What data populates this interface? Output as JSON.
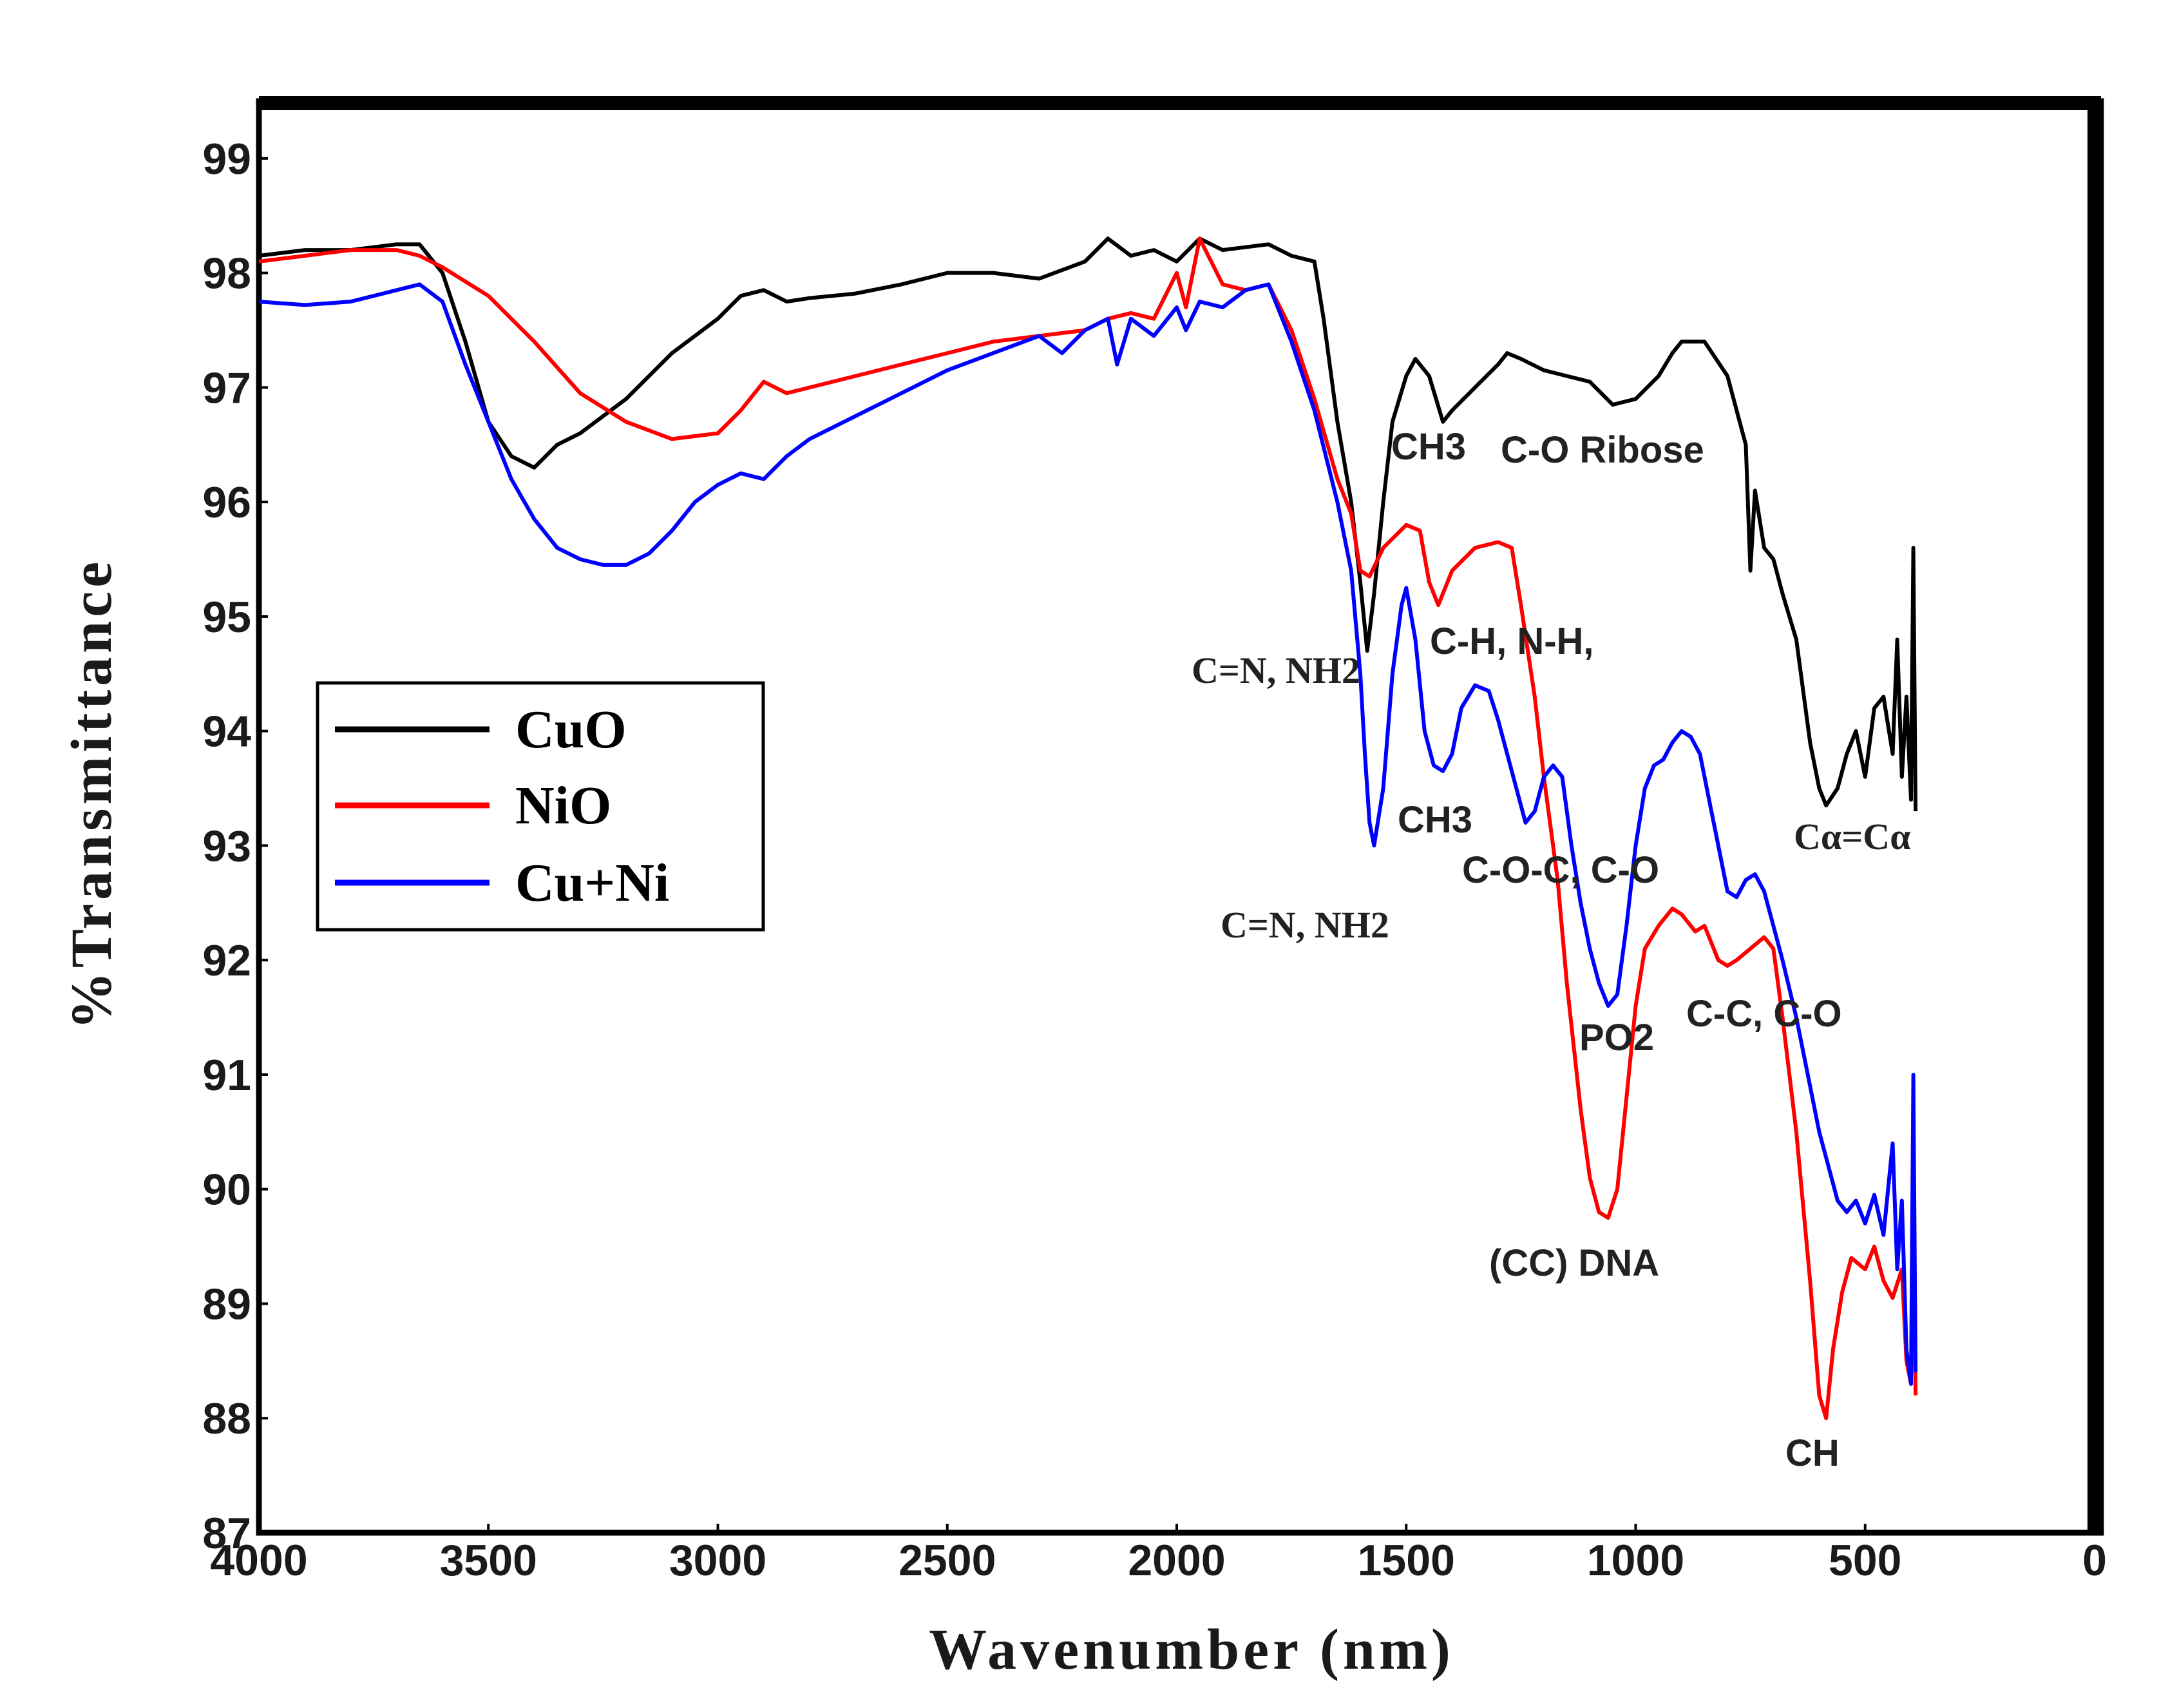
{
  "chart_data": {
    "type": "line",
    "title": "",
    "xlabel": "Wavenumber (nm)",
    "ylabel": "%Transmittance",
    "xlim": [
      4000,
      0
    ],
    "ylim": [
      87,
      99.5
    ],
    "x_ticks": [
      4000,
      3500,
      3000,
      2500,
      2000,
      1500,
      1000,
      500,
      0
    ],
    "y_ticks": [
      87,
      88,
      89,
      90,
      91,
      92,
      93,
      94,
      95,
      96,
      97,
      98,
      99
    ],
    "legend_position": "middle-left",
    "series": [
      {
        "name": "CuO",
        "color": "#000000",
        "points": [
          [
            4000,
            98.15
          ],
          [
            3900,
            98.2
          ],
          [
            3800,
            98.2
          ],
          [
            3700,
            98.25
          ],
          [
            3650,
            98.25
          ],
          [
            3600,
            98.0
          ],
          [
            3550,
            97.4
          ],
          [
            3500,
            96.7
          ],
          [
            3450,
            96.4
          ],
          [
            3400,
            96.3
          ],
          [
            3350,
            96.5
          ],
          [
            3300,
            96.6
          ],
          [
            3200,
            96.9
          ],
          [
            3100,
            97.3
          ],
          [
            3000,
            97.6
          ],
          [
            2950,
            97.8
          ],
          [
            2900,
            97.85
          ],
          [
            2850,
            97.75
          ],
          [
            2800,
            97.78
          ],
          [
            2700,
            97.82
          ],
          [
            2600,
            97.9
          ],
          [
            2500,
            98.0
          ],
          [
            2400,
            98.0
          ],
          [
            2300,
            97.95
          ],
          [
            2200,
            98.1
          ],
          [
            2150,
            98.3
          ],
          [
            2100,
            98.15
          ],
          [
            2050,
            98.2
          ],
          [
            2000,
            98.1
          ],
          [
            1950,
            98.3
          ],
          [
            1900,
            98.2
          ],
          [
            1800,
            98.25
          ],
          [
            1750,
            98.15
          ],
          [
            1700,
            98.1
          ],
          [
            1680,
            97.6
          ],
          [
            1650,
            96.7
          ],
          [
            1620,
            96.0
          ],
          [
            1600,
            95.3
          ],
          [
            1585,
            94.7
          ],
          [
            1570,
            95.2
          ],
          [
            1550,
            96.0
          ],
          [
            1530,
            96.7
          ],
          [
            1500,
            97.1
          ],
          [
            1480,
            97.25
          ],
          [
            1450,
            97.1
          ],
          [
            1420,
            96.7
          ],
          [
            1400,
            96.8
          ],
          [
            1350,
            97.0
          ],
          [
            1300,
            97.2
          ],
          [
            1280,
            97.3
          ],
          [
            1250,
            97.25
          ],
          [
            1200,
            97.15
          ],
          [
            1150,
            97.1
          ],
          [
            1100,
            97.05
          ],
          [
            1050,
            96.85
          ],
          [
            1000,
            96.9
          ],
          [
            950,
            97.1
          ],
          [
            920,
            97.3
          ],
          [
            900,
            97.4
          ],
          [
            850,
            97.4
          ],
          [
            800,
            97.1
          ],
          [
            760,
            96.5
          ],
          [
            750,
            95.4
          ],
          [
            740,
            96.1
          ],
          [
            720,
            95.6
          ],
          [
            700,
            95.5
          ],
          [
            680,
            95.2
          ],
          [
            650,
            94.8
          ],
          [
            620,
            93.9
          ],
          [
            600,
            93.5
          ],
          [
            585,
            93.35
          ],
          [
            560,
            93.5
          ],
          [
            540,
            93.8
          ],
          [
            520,
            94.0
          ],
          [
            500,
            93.6
          ],
          [
            480,
            94.2
          ],
          [
            460,
            94.3
          ],
          [
            440,
            93.8
          ],
          [
            430,
            94.8
          ],
          [
            420,
            93.6
          ],
          [
            410,
            94.3
          ],
          [
            400,
            93.4
          ],
          [
            395,
            95.6
          ],
          [
            390,
            93.3
          ]
        ]
      },
      {
        "name": "NiO",
        "color": "#ff0000",
        "points": [
          [
            4000,
            98.1
          ],
          [
            3900,
            98.15
          ],
          [
            3800,
            98.2
          ],
          [
            3700,
            98.2
          ],
          [
            3650,
            98.15
          ],
          [
            3600,
            98.05
          ],
          [
            3500,
            97.8
          ],
          [
            3400,
            97.4
          ],
          [
            3300,
            96.95
          ],
          [
            3200,
            96.7
          ],
          [
            3100,
            96.55
          ],
          [
            3000,
            96.6
          ],
          [
            2950,
            96.8
          ],
          [
            2900,
            97.05
          ],
          [
            2850,
            96.95
          ],
          [
            2800,
            97.0
          ],
          [
            2700,
            97.1
          ],
          [
            2600,
            97.2
          ],
          [
            2500,
            97.3
          ],
          [
            2400,
            97.4
          ],
          [
            2300,
            97.45
          ],
          [
            2200,
            97.5
          ],
          [
            2150,
            97.6
          ],
          [
            2100,
            97.65
          ],
          [
            2050,
            97.6
          ],
          [
            2000,
            98.0
          ],
          [
            1980,
            97.7
          ],
          [
            1950,
            98.3
          ],
          [
            1900,
            97.9
          ],
          [
            1850,
            97.85
          ],
          [
            1800,
            97.9
          ],
          [
            1750,
            97.5
          ],
          [
            1700,
            96.9
          ],
          [
            1650,
            96.2
          ],
          [
            1620,
            95.9
          ],
          [
            1600,
            95.4
          ],
          [
            1580,
            95.35
          ],
          [
            1550,
            95.6
          ],
          [
            1500,
            95.8
          ],
          [
            1470,
            95.75
          ],
          [
            1450,
            95.3
          ],
          [
            1430,
            95.1
          ],
          [
            1400,
            95.4
          ],
          [
            1350,
            95.6
          ],
          [
            1300,
            95.65
          ],
          [
            1270,
            95.6
          ],
          [
            1250,
            95.1
          ],
          [
            1220,
            94.3
          ],
          [
            1200,
            93.6
          ],
          [
            1170,
            92.7
          ],
          [
            1150,
            91.8
          ],
          [
            1120,
            90.7
          ],
          [
            1100,
            90.1
          ],
          [
            1080,
            89.8
          ],
          [
            1060,
            89.75
          ],
          [
            1040,
            90.0
          ],
          [
            1020,
            90.8
          ],
          [
            1000,
            91.6
          ],
          [
            980,
            92.1
          ],
          [
            950,
            92.3
          ],
          [
            920,
            92.45
          ],
          [
            900,
            92.4
          ],
          [
            870,
            92.25
          ],
          [
            850,
            92.3
          ],
          [
            820,
            92.0
          ],
          [
            800,
            91.95
          ],
          [
            780,
            92.0
          ],
          [
            750,
            92.1
          ],
          [
            720,
            92.2
          ],
          [
            700,
            92.1
          ],
          [
            680,
            91.5
          ],
          [
            650,
            90.5
          ],
          [
            620,
            89.2
          ],
          [
            600,
            88.2
          ],
          [
            585,
            88.0
          ],
          [
            570,
            88.6
          ],
          [
            550,
            89.1
          ],
          [
            530,
            89.4
          ],
          [
            500,
            89.3
          ],
          [
            480,
            89.5
          ],
          [
            460,
            89.2
          ],
          [
            440,
            89.05
          ],
          [
            420,
            89.3
          ],
          [
            410,
            88.5
          ],
          [
            400,
            88.3
          ],
          [
            395,
            90.0
          ],
          [
            390,
            88.2
          ]
        ]
      },
      {
        "name": "Cu+Ni",
        "color": "#0000ff",
        "points": [
          [
            4000,
            97.75
          ],
          [
            3900,
            97.72
          ],
          [
            3800,
            97.75
          ],
          [
            3700,
            97.85
          ],
          [
            3650,
            97.9
          ],
          [
            3600,
            97.75
          ],
          [
            3550,
            97.2
          ],
          [
            3500,
            96.7
          ],
          [
            3450,
            96.2
          ],
          [
            3400,
            95.85
          ],
          [
            3350,
            95.6
          ],
          [
            3300,
            95.5
          ],
          [
            3250,
            95.45
          ],
          [
            3200,
            95.45
          ],
          [
            3150,
            95.55
          ],
          [
            3100,
            95.75
          ],
          [
            3050,
            96.0
          ],
          [
            3000,
            96.15
          ],
          [
            2950,
            96.25
          ],
          [
            2900,
            96.2
          ],
          [
            2850,
            96.4
          ],
          [
            2800,
            96.55
          ],
          [
            2700,
            96.75
          ],
          [
            2600,
            96.95
          ],
          [
            2500,
            97.15
          ],
          [
            2400,
            97.3
          ],
          [
            2300,
            97.45
          ],
          [
            2250,
            97.3
          ],
          [
            2200,
            97.5
          ],
          [
            2150,
            97.6
          ],
          [
            2130,
            97.2
          ],
          [
            2100,
            97.6
          ],
          [
            2050,
            97.45
          ],
          [
            2000,
            97.7
          ],
          [
            1980,
            97.5
          ],
          [
            1950,
            97.75
          ],
          [
            1900,
            97.7
          ],
          [
            1850,
            97.85
          ],
          [
            1800,
            97.9
          ],
          [
            1750,
            97.4
          ],
          [
            1700,
            96.8
          ],
          [
            1650,
            96.0
          ],
          [
            1620,
            95.4
          ],
          [
            1600,
            94.5
          ],
          [
            1590,
            93.8
          ],
          [
            1580,
            93.2
          ],
          [
            1570,
            93.0
          ],
          [
            1550,
            93.5
          ],
          [
            1530,
            94.5
          ],
          [
            1510,
            95.1
          ],
          [
            1500,
            95.25
          ],
          [
            1480,
            94.8
          ],
          [
            1460,
            94.0
          ],
          [
            1440,
            93.7
          ],
          [
            1420,
            93.65
          ],
          [
            1400,
            93.8
          ],
          [
            1380,
            94.2
          ],
          [
            1350,
            94.4
          ],
          [
            1320,
            94.35
          ],
          [
            1300,
            94.1
          ],
          [
            1280,
            93.8
          ],
          [
            1260,
            93.5
          ],
          [
            1240,
            93.2
          ],
          [
            1220,
            93.3
          ],
          [
            1200,
            93.6
          ],
          [
            1180,
            93.7
          ],
          [
            1160,
            93.6
          ],
          [
            1140,
            93.0
          ],
          [
            1120,
            92.5
          ],
          [
            1100,
            92.1
          ],
          [
            1080,
            91.8
          ],
          [
            1060,
            91.6
          ],
          [
            1040,
            91.7
          ],
          [
            1020,
            92.3
          ],
          [
            1000,
            93.0
          ],
          [
            980,
            93.5
          ],
          [
            960,
            93.7
          ],
          [
            940,
            93.75
          ],
          [
            920,
            93.9
          ],
          [
            900,
            94.0
          ],
          [
            880,
            93.95
          ],
          [
            860,
            93.8
          ],
          [
            840,
            93.4
          ],
          [
            820,
            93.0
          ],
          [
            800,
            92.6
          ],
          [
            780,
            92.55
          ],
          [
            760,
            92.7
          ],
          [
            740,
            92.75
          ],
          [
            720,
            92.6
          ],
          [
            700,
            92.3
          ],
          [
            680,
            92.0
          ],
          [
            650,
            91.5
          ],
          [
            620,
            90.9
          ],
          [
            600,
            90.5
          ],
          [
            580,
            90.2
          ],
          [
            560,
            89.9
          ],
          [
            540,
            89.8
          ],
          [
            520,
            89.9
          ],
          [
            500,
            89.7
          ],
          [
            480,
            89.95
          ],
          [
            460,
            89.6
          ],
          [
            440,
            90.4
          ],
          [
            430,
            89.3
          ],
          [
            420,
            89.9
          ],
          [
            410,
            88.6
          ],
          [
            400,
            88.3
          ],
          [
            395,
            91.0
          ],
          [
            390,
            88.4
          ]
        ]
      }
    ],
    "annotations": [
      "CH3",
      "C-O Ribose",
      "C=N, NH2",
      "C-H, N-H,",
      "CH3",
      "C-O-C, C-O",
      "C=N, NH2",
      "PO2",
      "C-C, C-O",
      "(CC) DNA",
      "CH",
      "Cα=Cα"
    ]
  }
}
